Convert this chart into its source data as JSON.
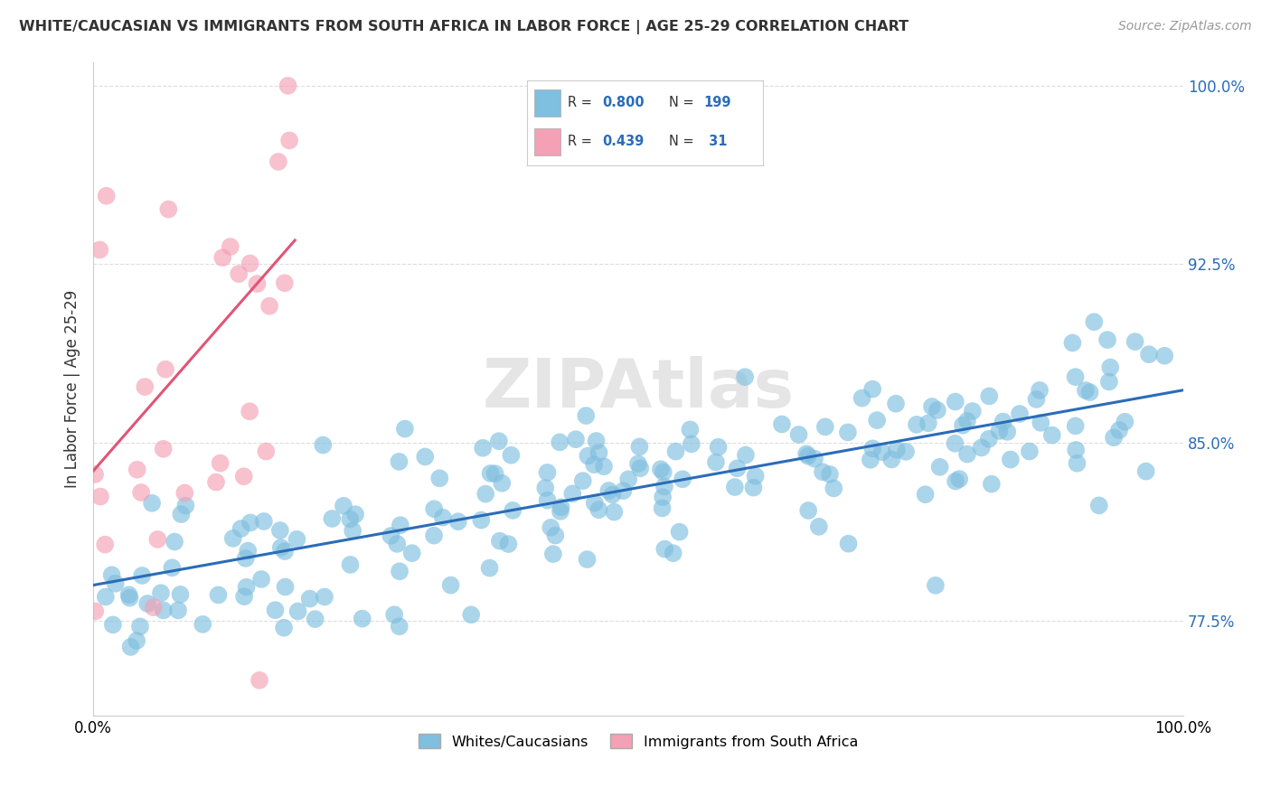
{
  "title": "WHITE/CAUCASIAN VS IMMIGRANTS FROM SOUTH AFRICA IN LABOR FORCE | AGE 25-29 CORRELATION CHART",
  "source": "Source: ZipAtlas.com",
  "ylabel": "In Labor Force | Age 25-29",
  "xlim": [
    0.0,
    1.0
  ],
  "ylim": [
    0.735,
    1.01
  ],
  "blue_R": 0.8,
  "blue_N": 199,
  "pink_R": 0.439,
  "pink_N": 31,
  "blue_color": "#7FBFDF",
  "pink_color": "#F4A0B5",
  "blue_line_color": "#2B6CB8",
  "pink_line_color": "#E05575",
  "watermark": "ZIPAtlas",
  "blue_line_x0": 0.0,
  "blue_line_y0": 0.79,
  "blue_line_x1": 1.0,
  "blue_line_y1": 0.872,
  "pink_line_x0": 0.0,
  "pink_line_y0": 0.838,
  "pink_line_x1": 0.185,
  "pink_line_y1": 0.935,
  "ytick_vals": [
    0.775,
    0.85,
    0.925,
    1.0
  ],
  "ytick_labels": [
    "77.5%",
    "85.0%",
    "92.5%",
    "100.0%"
  ],
  "grid_color": "#DDDDDD",
  "bg_color": "#FFFFFF",
  "legend_label_blue": "Whites/Caucasians",
  "legend_label_pink": "Immigrants from South Africa"
}
